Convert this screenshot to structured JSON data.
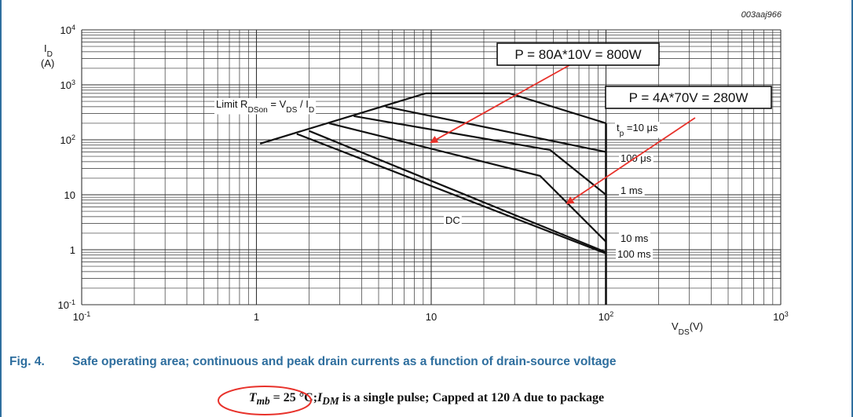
{
  "figure": {
    "number": "Fig. 4.",
    "caption": "Safe operating area; continuous and peak drain currents as a function of drain-source voltage",
    "note": {
      "tmb": "T",
      "tmb_sub": "mb",
      "tmb_value": " = 25 °C;",
      "idm": "I",
      "idm_sub": "DM",
      "rest": " is a single pulse; Capped at 120 A due to package"
    },
    "code": "003aaj966"
  },
  "chart_data": {
    "type": "line",
    "x_scale": "log",
    "y_scale": "log",
    "xlim": [
      0.1,
      1000
    ],
    "ylim": [
      0.1,
      10000
    ],
    "grid": true,
    "xlabel": {
      "main": "V",
      "sub": "DS",
      "unit": "(V)"
    },
    "ylabel": {
      "main": "I",
      "sub": "D",
      "unit": "(A)"
    },
    "x_ticks": [
      {
        "value": 0.1,
        "base": "10",
        "exp": "-1"
      },
      {
        "value": 1,
        "text": "1"
      },
      {
        "value": 10,
        "text": "10"
      },
      {
        "value": 100,
        "base": "10",
        "exp": "2"
      },
      {
        "value": 1000,
        "base": "10",
        "exp": "3"
      }
    ],
    "y_ticks": [
      {
        "value": 0.1,
        "base": "10",
        "exp": "-1"
      },
      {
        "value": 1,
        "text": "1"
      },
      {
        "value": 10,
        "text": "10"
      },
      {
        "value": 100,
        "base": "10",
        "exp": "2"
      },
      {
        "value": 1000,
        "base": "10",
        "exp": "3"
      },
      {
        "value": 10000,
        "base": "10",
        "exp": "4"
      }
    ],
    "limit_line": {
      "x": [
        1.05,
        9.3
      ],
      "y": [
        85,
        700
      ]
    },
    "series": [
      {
        "name": "tp =10 μs",
        "x": [
          9.3,
          28,
          100
        ],
        "y": [
          700,
          700,
          200
        ]
      },
      {
        "name": "100 μs",
        "x": [
          5.5,
          100
        ],
        "y": [
          400,
          60
        ]
      },
      {
        "name": "1 ms",
        "x": [
          3.6,
          48,
          100
        ],
        "y": [
          270,
          65,
          10
        ]
      },
      {
        "name": "10 ms",
        "x": [
          2.6,
          42,
          100
        ],
        "y": [
          200,
          22,
          1.4
        ]
      },
      {
        "name": "100 ms",
        "x": [
          2.0,
          100
        ],
        "y": [
          145,
          0.9
        ]
      },
      {
        "name": "DC",
        "x": [
          1.7,
          100
        ],
        "y": [
          128,
          0.85
        ]
      }
    ],
    "vertical_limit": {
      "x": 100,
      "y": [
        0.1,
        200
      ]
    },
    "labels": {
      "limit": {
        "pre": "Limit R",
        "sub1": "DSon",
        "mid": " = V",
        "sub2": "DS",
        "slash": " / I",
        "sub3": "D"
      },
      "tp10": {
        "pre": "t",
        "sub": "p",
        "post": " =10 μs"
      },
      "us100": "100 μs",
      "ms1": "1 ms",
      "ms10": "10 ms",
      "ms100": "100 ms",
      "dc": "DC"
    },
    "annotations": [
      {
        "text": "P = 80A*10V = 800W",
        "arrow_to": [
          10,
          90
        ]
      },
      {
        "text": "P = 4A*70V = 280W",
        "arrow_to": [
          60,
          7
        ]
      }
    ],
    "colors": {
      "annotation_arrow": "#e8322b",
      "highlight_circle": "#e8322b",
      "caption": "#2e6e9e",
      "curve": "#111111"
    }
  }
}
